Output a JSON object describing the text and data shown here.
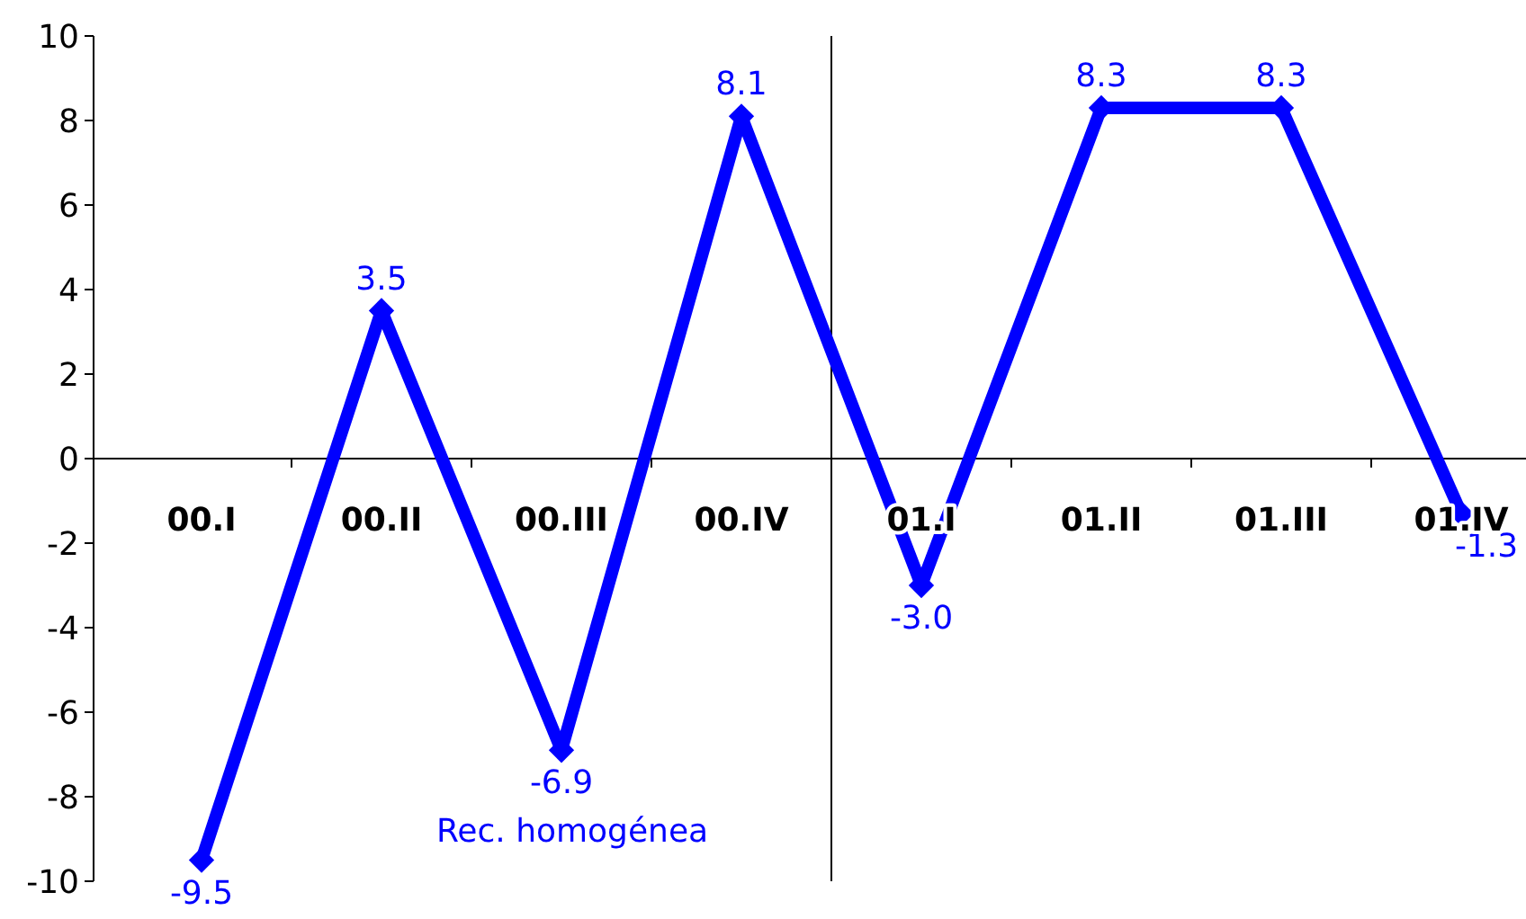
{
  "chart_data": {
    "type": "line",
    "categories": [
      "00.I",
      "00.II",
      "00.III",
      "00.IV",
      "01.I",
      "01.II",
      "01.III",
      "01.IV"
    ],
    "series": [
      {
        "name": "Rec. homogénea",
        "color": "#0000ff",
        "values": [
          -9.5,
          3.5,
          -6.9,
          8.1,
          -3.0,
          8.3,
          8.3,
          -1.3
        ],
        "value_labels": [
          "-9.5",
          "3.5",
          "-6.9",
          "8.1",
          "-3.0",
          "8.3",
          "8.3",
          "-1.3"
        ]
      }
    ],
    "ylim": [
      -10,
      10
    ],
    "yticks": [
      -10,
      -8,
      -6,
      -4,
      -2,
      0,
      2,
      4,
      6,
      8,
      10
    ],
    "marker": "diamond",
    "line_style": "solid",
    "grid": false,
    "legend": "bottom"
  }
}
